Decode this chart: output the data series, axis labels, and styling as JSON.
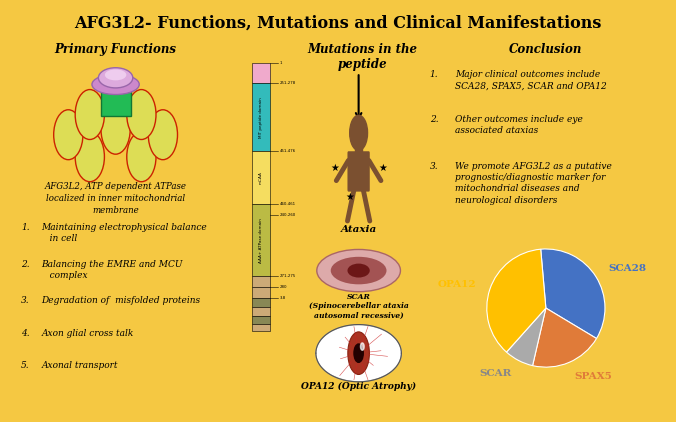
{
  "title": "AFG3L2- Functions, Mutations and Clinical Manifestations",
  "background_color": "#F5C842",
  "panel_bg": "#FFFFFF",
  "panel_border": "#4472C4",
  "left_panel_title": "Primary Functions",
  "left_panel_desc": "AFG3L2, ATP dependent ATPase\nlocalized in inner mitochondrial\nmembrane",
  "left_panel_items": [
    "Maintaining electrophysical balance\n   in cell",
    "Balancing the EMRE and MCU\n   complex",
    "Degradation of  misfolded proteins",
    "Axon glial cross talk",
    "Axonal transport"
  ],
  "middle_panel_title": "Mutations in the\npeptide",
  "right_panel_title": "Conclusion",
  "right_panel_items": [
    "Major clinical outcomes include\nSCA28, SPAX5, SCAR and OPA12",
    "Other outcomes include eye\nassociated ataxias",
    "We promote AFG3L2 as a putative\nprognostic/diagnostic marker for\nmitochondrial diseases and\nneurological disorders"
  ],
  "pie_labels": [
    "SCA28",
    "SPAX5",
    "SCAR",
    "OPA12"
  ],
  "pie_sizes": [
    35,
    20,
    8,
    37
  ],
  "pie_colors": [
    "#4472C4",
    "#E07B39",
    "#AAAAAA",
    "#FFC000"
  ],
  "pie_label_colors": [
    "#4472C4",
    "#E07B39",
    "#888888",
    "#FFC000"
  ],
  "ataxia_label": "Ataxia",
  "scar_label": "SCAR\n(Spinocerebellar ataxia\nautosomal recessive)",
  "opa12_label": "OPA12 (Optic Atrophy)"
}
